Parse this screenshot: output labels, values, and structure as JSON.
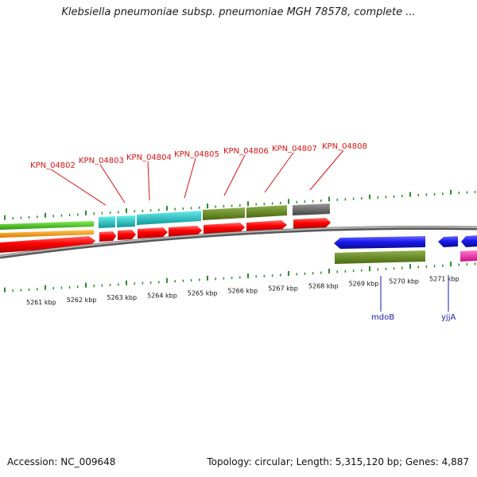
{
  "title": "Klebsiella pneumoniae subsp. pneumoniae MGH 78578, complete ...",
  "footer": {
    "accession": "Accession: NC_009648",
    "summary": "Topology: circular; Length: 5,315,120 bp; Genes: 4,887"
  },
  "scale": {
    "labels": [
      "5261 kbp",
      "5262 kbp",
      "5263 kbp",
      "5264 kbp",
      "5265 kbp",
      "5266 kbp",
      "5267 kbp",
      "5268 kbp",
      "5269 kbp",
      "5270 kbp",
      "5271 kbp"
    ]
  },
  "gene_labels_top": [
    "KPN_04802",
    "KPN_04803",
    "KPN_04804",
    "KPN_04805",
    "KPN_04806",
    "KPN_04807",
    "KPN_04808"
  ],
  "gene_labels_bottom": [
    "mdoB",
    "yjjA"
  ],
  "colors": {
    "gene": "#ff0000",
    "green_track": "#44cc22",
    "orange_track": "#ff9900",
    "cyan_track": "#22cccc",
    "olive_track": "#6b8e23",
    "gray_track": "#666666",
    "blue_gene": "#1a1aee",
    "magenta_gene": "#ee22aa",
    "backbone": "#888888",
    "tick": "#2a8a2a",
    "label_red": "#e01010",
    "label_blue": "#1a1ab0"
  }
}
